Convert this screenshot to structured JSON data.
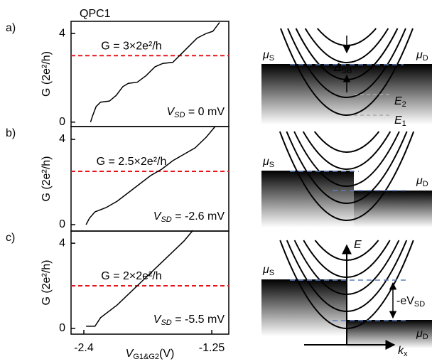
{
  "chart_data": [
    {
      "type": "line",
      "panel": "a)",
      "title": "QPC1",
      "ylabel": "G (2e²/h)",
      "x": [
        -2.34,
        -2.32,
        -2.29,
        -2.25,
        -2.17,
        -2.11,
        -2.05,
        -2.0,
        -1.92,
        -1.84,
        -1.76,
        -1.69,
        -1.6,
        -1.52,
        -1.44,
        -1.38,
        -1.3,
        -1.24,
        -1.18
      ],
      "values": [
        0,
        0.3,
        0.7,
        0.9,
        0.95,
        1.2,
        1.6,
        1.75,
        1.8,
        2.1,
        2.5,
        2.65,
        2.7,
        3.1,
        3.5,
        3.8,
        4.0,
        4.1,
        4.5
      ],
      "color": "#000000",
      "xlim": [
        -2.515,
        -1.097
      ],
      "ylim": [
        -0.2,
        4.55
      ],
      "yticks": [
        0,
        4
      ],
      "reference_line": {
        "value": 3,
        "label": "G = 3×2e²/h",
        "color": "#e8141c"
      },
      "vsd_label": {
        "main": "V",
        "sub": "SD",
        "rest": " = 0 mV"
      }
    },
    {
      "type": "line",
      "panel": "b)",
      "ylabel": "G (2e²/h)",
      "x": [
        -2.38,
        -2.35,
        -2.3,
        -2.2,
        -2.1,
        -2.0,
        -1.9,
        -1.8,
        -1.7,
        -1.6,
        -1.5,
        -1.4,
        -1.3,
        -1.22
      ],
      "values": [
        0,
        0.3,
        0.6,
        0.8,
        1.1,
        1.5,
        1.9,
        2.3,
        2.6,
        3.0,
        3.3,
        3.6,
        4.1,
        4.6
      ],
      "color": "#000000",
      "xlim": [
        -2.515,
        -1.097
      ],
      "ylim": [
        -0.3,
        4.6
      ],
      "yticks": [
        0,
        4
      ],
      "reference_line": {
        "value": 2.5,
        "label": "G = 2.5×2e²/h",
        "color": "#e8141c"
      },
      "vsd_label": {
        "main": "V",
        "sub": "SD",
        "rest": " = -2.6 mV"
      }
    },
    {
      "type": "line",
      "panel": "c)",
      "ylabel": "G (2e²/h)",
      "xlabel": {
        "main": "V",
        "sub": "G1&G2",
        "rest": "(V)"
      },
      "x": [
        -2.38,
        -2.3,
        -2.25,
        -2.1,
        -2.0,
        -1.9,
        -1.8,
        -1.7,
        -1.6,
        -1.5,
        -1.42
      ],
      "values": [
        0.1,
        0.1,
        0.5,
        1.1,
        1.6,
        2.1,
        2.6,
        3.1,
        3.6,
        4.1,
        4.6
      ],
      "color": "#000000",
      "xlim": [
        -2.515,
        -1.097
      ],
      "ylim": [
        -0.27,
        4.57
      ],
      "yticks": [
        0,
        4
      ],
      "xticks": [
        -2.4,
        -1.25
      ],
      "reference_line": {
        "value": 2,
        "label": "G = 2×2e²/h",
        "color": "#e8141c"
      },
      "vsd_label": {
        "main": "V",
        "sub": "SD",
        "rest": " = -5.5 mV"
      }
    }
  ],
  "diagrams": [
    {
      "labels": [
        {
          "main": "μ",
          "sub": "S"
        },
        {
          "main": "μ",
          "sub": "D"
        },
        {
          "main": "Δ",
          "sub": "SB"
        },
        {
          "main": "E",
          "sub": "2"
        },
        {
          "main": "E",
          "sub": "1"
        }
      ]
    },
    {
      "labels": [
        {
          "main": "μ",
          "sub": "S"
        },
        {
          "main": "μ",
          "sub": "D"
        }
      ]
    },
    {
      "labels": [
        {
          "main": "E"
        },
        {
          "main": "k",
          "sub": "x"
        },
        {
          "main": "μ",
          "sub": "S"
        },
        {
          "main": "-eV",
          "sub": "SD"
        },
        {
          "main": "μ",
          "sub": "D"
        }
      ]
    }
  ]
}
